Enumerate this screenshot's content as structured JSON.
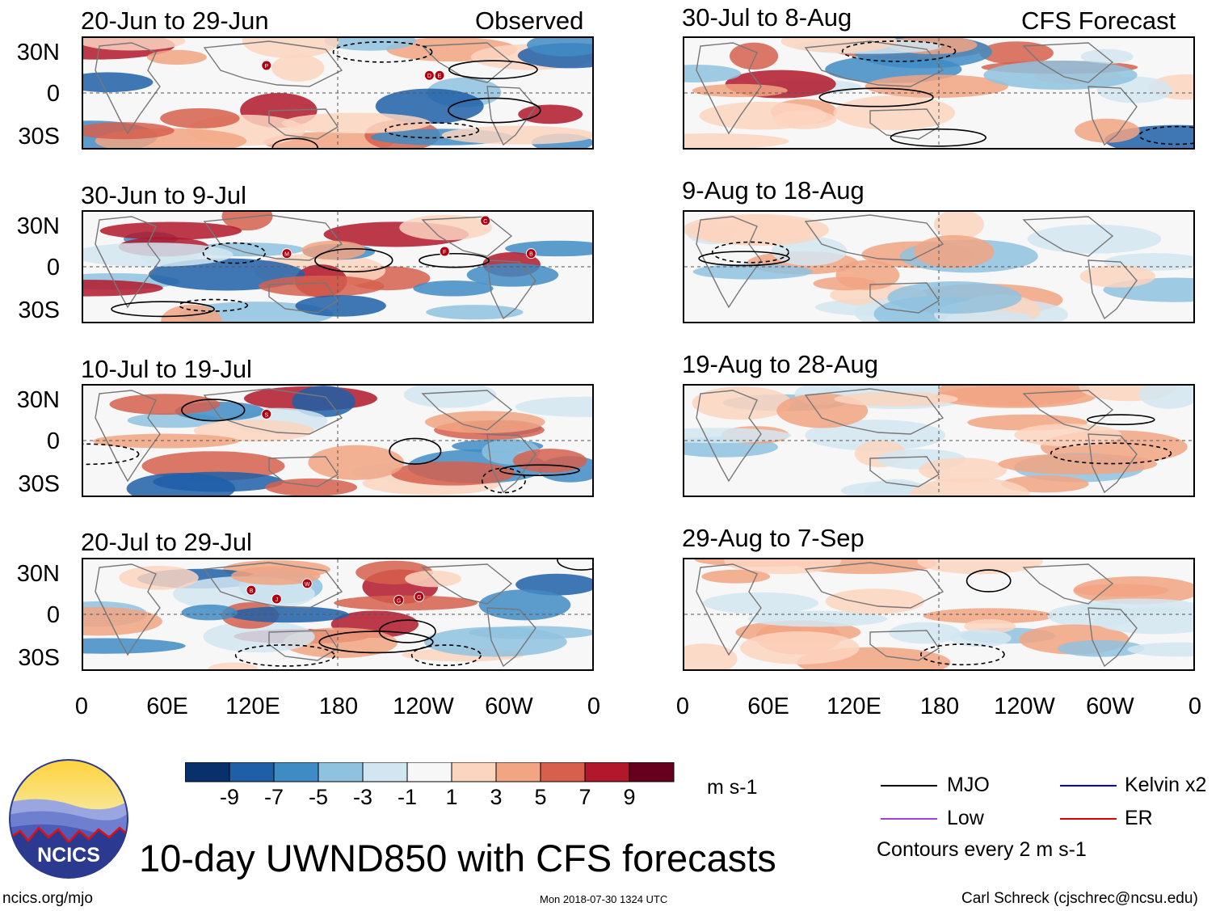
{
  "title": "10-day UWND850 with CFS forecasts",
  "chart_data": {
    "type": "heatmap",
    "variable": "850-hPa zonal wind anomaly",
    "units": "m s-1",
    "colorbar": {
      "ticks": [
        "-9",
        "-7",
        "-5",
        "-3",
        "-1",
        "1",
        "3",
        "5",
        "7",
        "9"
      ],
      "colors": [
        "#08306b",
        "#1f5fa8",
        "#3f8cc4",
        "#8fc2df",
        "#d2e6f1",
        "#f7f7f7",
        "#fcd5bf",
        "#f2a582",
        "#d6604d",
        "#b2182b",
        "#67001f"
      ]
    },
    "y_ticks": [
      "30N",
      "0",
      "30S"
    ],
    "x_ticks": [
      "0",
      "60E",
      "120E",
      "180",
      "120W",
      "60W",
      "0"
    ],
    "left_column_label": "Observed",
    "right_column_label": "CFS Forecast",
    "panels": [
      {
        "period": "20-Jun to 29-Jun",
        "storms": [
          "P",
          "D",
          "E"
        ]
      },
      {
        "period": "30-Jun to 9-Jul",
        "storms": [
          "M",
          "F",
          "C",
          "B"
        ]
      },
      {
        "period": "10-Jul to 19-Jul",
        "storms": [
          "S"
        ]
      },
      {
        "period": "20-Jul to 29-Jul",
        "storms": [
          "B",
          "J",
          "W",
          "G",
          "G"
        ]
      },
      {
        "period": "30-Jul to 8-Aug",
        "storms": []
      },
      {
        "period": "9-Aug to 18-Aug",
        "storms": []
      },
      {
        "period": "19-Aug to 28-Aug",
        "storms": []
      },
      {
        "period": "29-Aug to 7-Sep",
        "storms": []
      }
    ],
    "legend": [
      {
        "label": "MJO",
        "color": "#000000"
      },
      {
        "label": "Kelvin x2",
        "color": "#0000e0"
      },
      {
        "label": "Low",
        "color": "#a040e0"
      },
      {
        "label": "ER",
        "color": "#e00000"
      }
    ],
    "contour_note": "Contours every 2 m s-1"
  },
  "logo": {
    "text": "NCICS"
  },
  "footer": {
    "url": "ncics.org/mjo",
    "timestamp": "Mon 2018-07-30 1324 UTC",
    "author": "Carl Schreck (cjschrec@ncsu.edu)"
  }
}
